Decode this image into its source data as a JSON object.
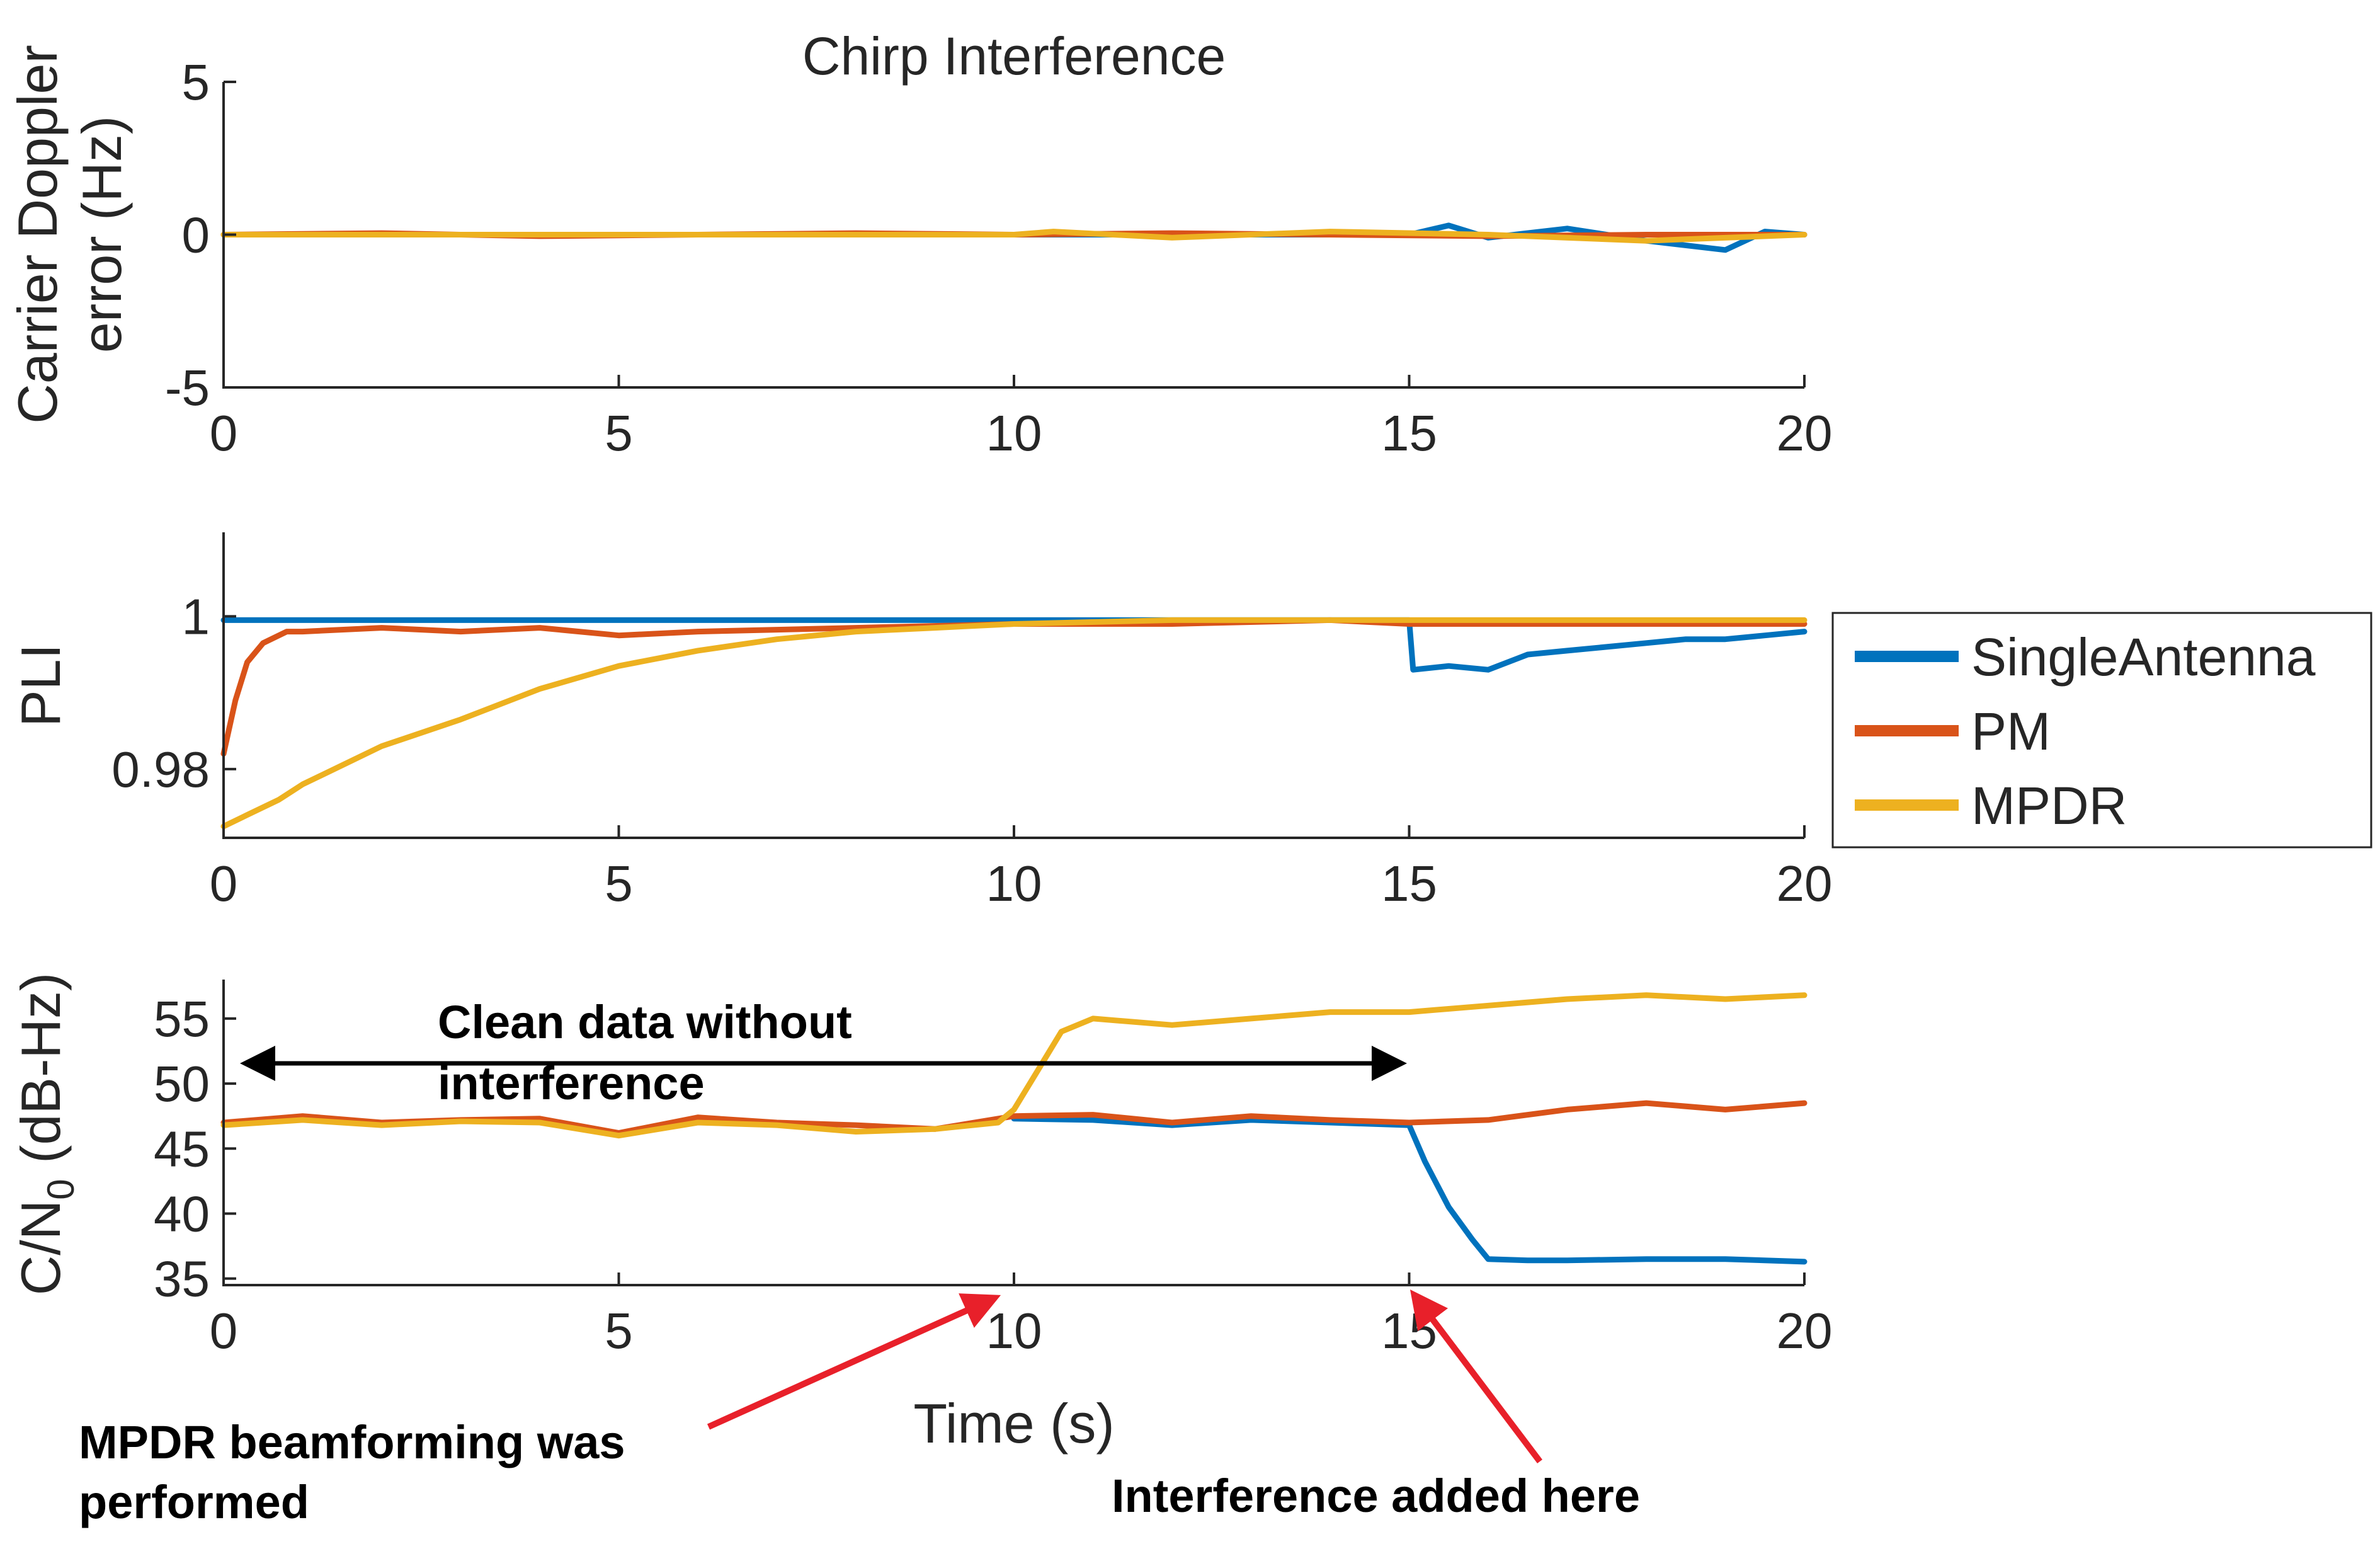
{
  "chart_data": [
    {
      "type": "line",
      "title": "Chirp Interference",
      "ylabel": "Carrier Doppler error (Hz)",
      "ylabel_lines": [
        "Carrier Doppler",
        "error (Hz)"
      ],
      "xlabel": "",
      "xlim": [
        0,
        20
      ],
      "ylim": [
        -5,
        5
      ],
      "xticks": [
        0,
        5,
        10,
        15,
        20
      ],
      "xtick_labels": [
        "0",
        "5",
        "10",
        "15",
        "20"
      ],
      "yticks": [
        5,
        0,
        -5
      ],
      "ytick_labels": [
        "5",
        "0",
        "-5"
      ],
      "series": [
        {
          "name": "SingleAntenna",
          "color": "#0072BD",
          "x": [
            0,
            15,
            15.5,
            16,
            17,
            18,
            19,
            19.5,
            20
          ],
          "y": [
            0,
            0,
            0.3,
            -0.1,
            0.2,
            -0.2,
            -0.5,
            0.1,
            0
          ]
        },
        {
          "name": "PM",
          "color": "#D95319",
          "x": [
            0,
            2,
            4,
            6,
            8,
            10,
            12,
            14,
            16,
            18,
            20
          ],
          "y": [
            0,
            0.05,
            -0.05,
            0,
            0.05,
            0,
            0.05,
            0,
            -0.05,
            0,
            0
          ]
        },
        {
          "name": "MPDR",
          "color": "#EDB120",
          "x": [
            0,
            10,
            10.5,
            12,
            14,
            16,
            18,
            20
          ],
          "y": [
            0,
            0,
            0.1,
            -0.1,
            0.1,
            0,
            -0.2,
            0
          ]
        }
      ]
    },
    {
      "type": "line",
      "ylabel": "PLI",
      "xlabel": "",
      "xlim": [
        0,
        20
      ],
      "ylim": [
        0.971,
        1.011
      ],
      "xticks": [
        0,
        5,
        10,
        15,
        20
      ],
      "xtick_labels": [
        "0",
        "5",
        "10",
        "15",
        "20"
      ],
      "yticks": [
        1,
        0.98
      ],
      "ytick_labels": [
        "1",
        "0.98"
      ],
      "series": [
        {
          "name": "SingleAntenna",
          "color": "#0072BD",
          "x": [
            0,
            15,
            15.05,
            15.5,
            16,
            16.5,
            17,
            18,
            18.5,
            19,
            19.5,
            20
          ],
          "y": [
            0.9995,
            0.9995,
            0.993,
            0.9935,
            0.993,
            0.995,
            0.9955,
            0.9965,
            0.997,
            0.997,
            0.9975,
            0.998
          ]
        },
        {
          "name": "PM",
          "color": "#D95319",
          "x": [
            0,
            0.15,
            0.3,
            0.5,
            0.8,
            1,
            2,
            3,
            4,
            5,
            6,
            8,
            10,
            12,
            14,
            15,
            16,
            18,
            20
          ],
          "y": [
            0.982,
            0.989,
            0.994,
            0.9965,
            0.998,
            0.998,
            0.9985,
            0.998,
            0.9985,
            0.9975,
            0.998,
            0.9985,
            0.999,
            0.999,
            0.9995,
            0.999,
            0.999,
            0.999,
            0.999
          ]
        },
        {
          "name": "MPDR",
          "color": "#EDB120",
          "x": [
            0,
            0.3,
            0.7,
            1,
            1.5,
            2,
            3,
            4,
            5,
            6,
            7,
            8,
            9,
            10,
            12,
            15,
            20
          ],
          "y": [
            0.9725,
            0.974,
            0.976,
            0.978,
            0.9805,
            0.983,
            0.9865,
            0.9905,
            0.9935,
            0.9955,
            0.997,
            0.998,
            0.9985,
            0.999,
            0.9995,
            0.9995,
            0.9995
          ]
        }
      ]
    },
    {
      "type": "line",
      "ylabel": "C/N0 (dB-Hz)",
      "ylabel_main": "C/N",
      "ylabel_sub": "0",
      "ylabel_tail": " (dB-Hz)",
      "xlabel": "Time (s)",
      "xlim": [
        0,
        20
      ],
      "ylim": [
        34.5,
        58
      ],
      "xticks": [
        0,
        5,
        10,
        15,
        20
      ],
      "xtick_labels": [
        "0",
        "5",
        "10",
        "15",
        "20"
      ],
      "yticks": [
        55,
        50,
        45,
        40,
        35
      ],
      "ytick_labels": [
        "55",
        "50",
        "45",
        "40",
        "35"
      ],
      "series": [
        {
          "name": "SingleAntenna",
          "color": "#0072BD",
          "x": [
            10,
            11,
            12,
            13,
            14,
            15,
            15.2,
            15.5,
            15.8,
            16,
            16.5,
            17,
            18,
            19,
            20
          ],
          "y": [
            47.3,
            47.2,
            46.8,
            47.2,
            47,
            46.8,
            44,
            40.5,
            38,
            36.5,
            36.4,
            36.4,
            36.5,
            36.5,
            36.3
          ]
        },
        {
          "name": "PM",
          "color": "#D95319",
          "x": [
            0,
            1,
            2,
            3,
            4,
            5,
            6,
            7,
            8,
            9,
            10,
            11,
            12,
            13,
            14,
            15,
            16,
            17,
            18,
            19,
            20
          ],
          "y": [
            47,
            47.5,
            47,
            47.2,
            47.3,
            46.2,
            47.4,
            47,
            46.8,
            46.5,
            47.5,
            47.6,
            47,
            47.5,
            47.2,
            47,
            47.2,
            48,
            48.5,
            48,
            48.5
          ]
        },
        {
          "name": "MPDR",
          "color": "#EDB120",
          "x": [
            0,
            1,
            2,
            3,
            4,
            5,
            6,
            7,
            8,
            9,
            9.8,
            10,
            10.3,
            10.6,
            11,
            12,
            13,
            14,
            15,
            16,
            17,
            18,
            19,
            20
          ],
          "y": [
            46.8,
            47.2,
            46.8,
            47.1,
            47,
            46,
            47,
            46.8,
            46.3,
            46.5,
            47,
            48,
            51,
            54,
            55,
            54.5,
            55,
            55.5,
            55.5,
            56,
            56.5,
            56.8,
            56.5,
            56.8
          ]
        }
      ]
    }
  ],
  "legend": {
    "entries": [
      {
        "label": "SingleAntenna",
        "color": "#0072BD"
      },
      {
        "label": "PM",
        "color": "#D95319"
      },
      {
        "label": "MPDR",
        "color": "#EDB120"
      }
    ]
  },
  "annotations": {
    "clean_data_line1": "Clean data without",
    "clean_data_line2": "interference",
    "mpdr_line1": "MPDR beamforming  was",
    "mpdr_line2": "performed",
    "interference_added": "Interference added here",
    "arrow_color": "#E8202A"
  }
}
